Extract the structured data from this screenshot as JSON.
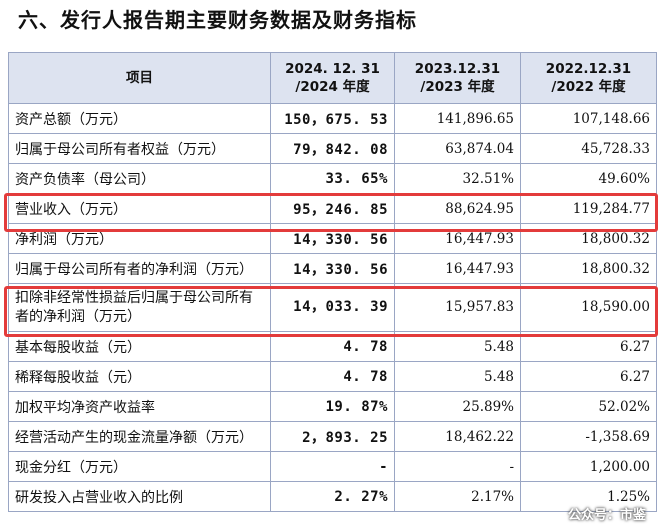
{
  "title": "六、发行人报告期主要财务数据及财务指标",
  "headers": [
    "项目",
    "2024. 12. 31\n/2024 年度",
    "2023.12.31\n/2023 年度",
    "2022.12.31\n/2022 年度"
  ],
  "rows": [
    [
      "资产总额（万元）",
      "150，675. 53",
      "141,896.65",
      "107,148.66"
    ],
    [
      "归属于母公司所有者权益（万元）",
      "79，842. 08",
      "63,874.04",
      "45,728.33"
    ],
    [
      "资产负债率（母公司）",
      "33. 65%",
      "32.51%",
      "49.60%"
    ],
    [
      "营业收入（万元）",
      "95，246. 85",
      "88,624.95",
      "119,284.77"
    ],
    [
      "净利润（万元）",
      "14，330. 56",
      "16,447.93",
      "18,800.32"
    ],
    [
      "归属于母公司所有者的净利润（万元）",
      "14，330. 56",
      "16,447.93",
      "18,800.32"
    ],
    [
      "扣除非经常性损益后归属于母公司所有者的净利润（万元）",
      "14，033. 39",
      "15,957.83",
      "18,590.00"
    ],
    [
      "基本每股收益（元）",
      "4. 78",
      "5.48",
      "6.27"
    ],
    [
      "稀释每股收益（元）",
      "4. 78",
      "5.48",
      "6.27"
    ],
    [
      "加权平均净资产收益率",
      "19. 87%",
      "25.89%",
      "52.02%"
    ],
    [
      "经营活动产生的现金流量净额（万元）",
      "2，893. 25",
      "18,462.22",
      "-1,358.69"
    ],
    [
      "现金分红（万元）",
      "-",
      "-",
      "1,200.00"
    ],
    [
      "研发投入占营业收入的比例",
      "2. 27%",
      "2.17%",
      "1.25%"
    ]
  ],
  "watermark": "公众号：市鉴",
  "highlight_color": "#e33b3b",
  "header_bg": "#dde3f0"
}
